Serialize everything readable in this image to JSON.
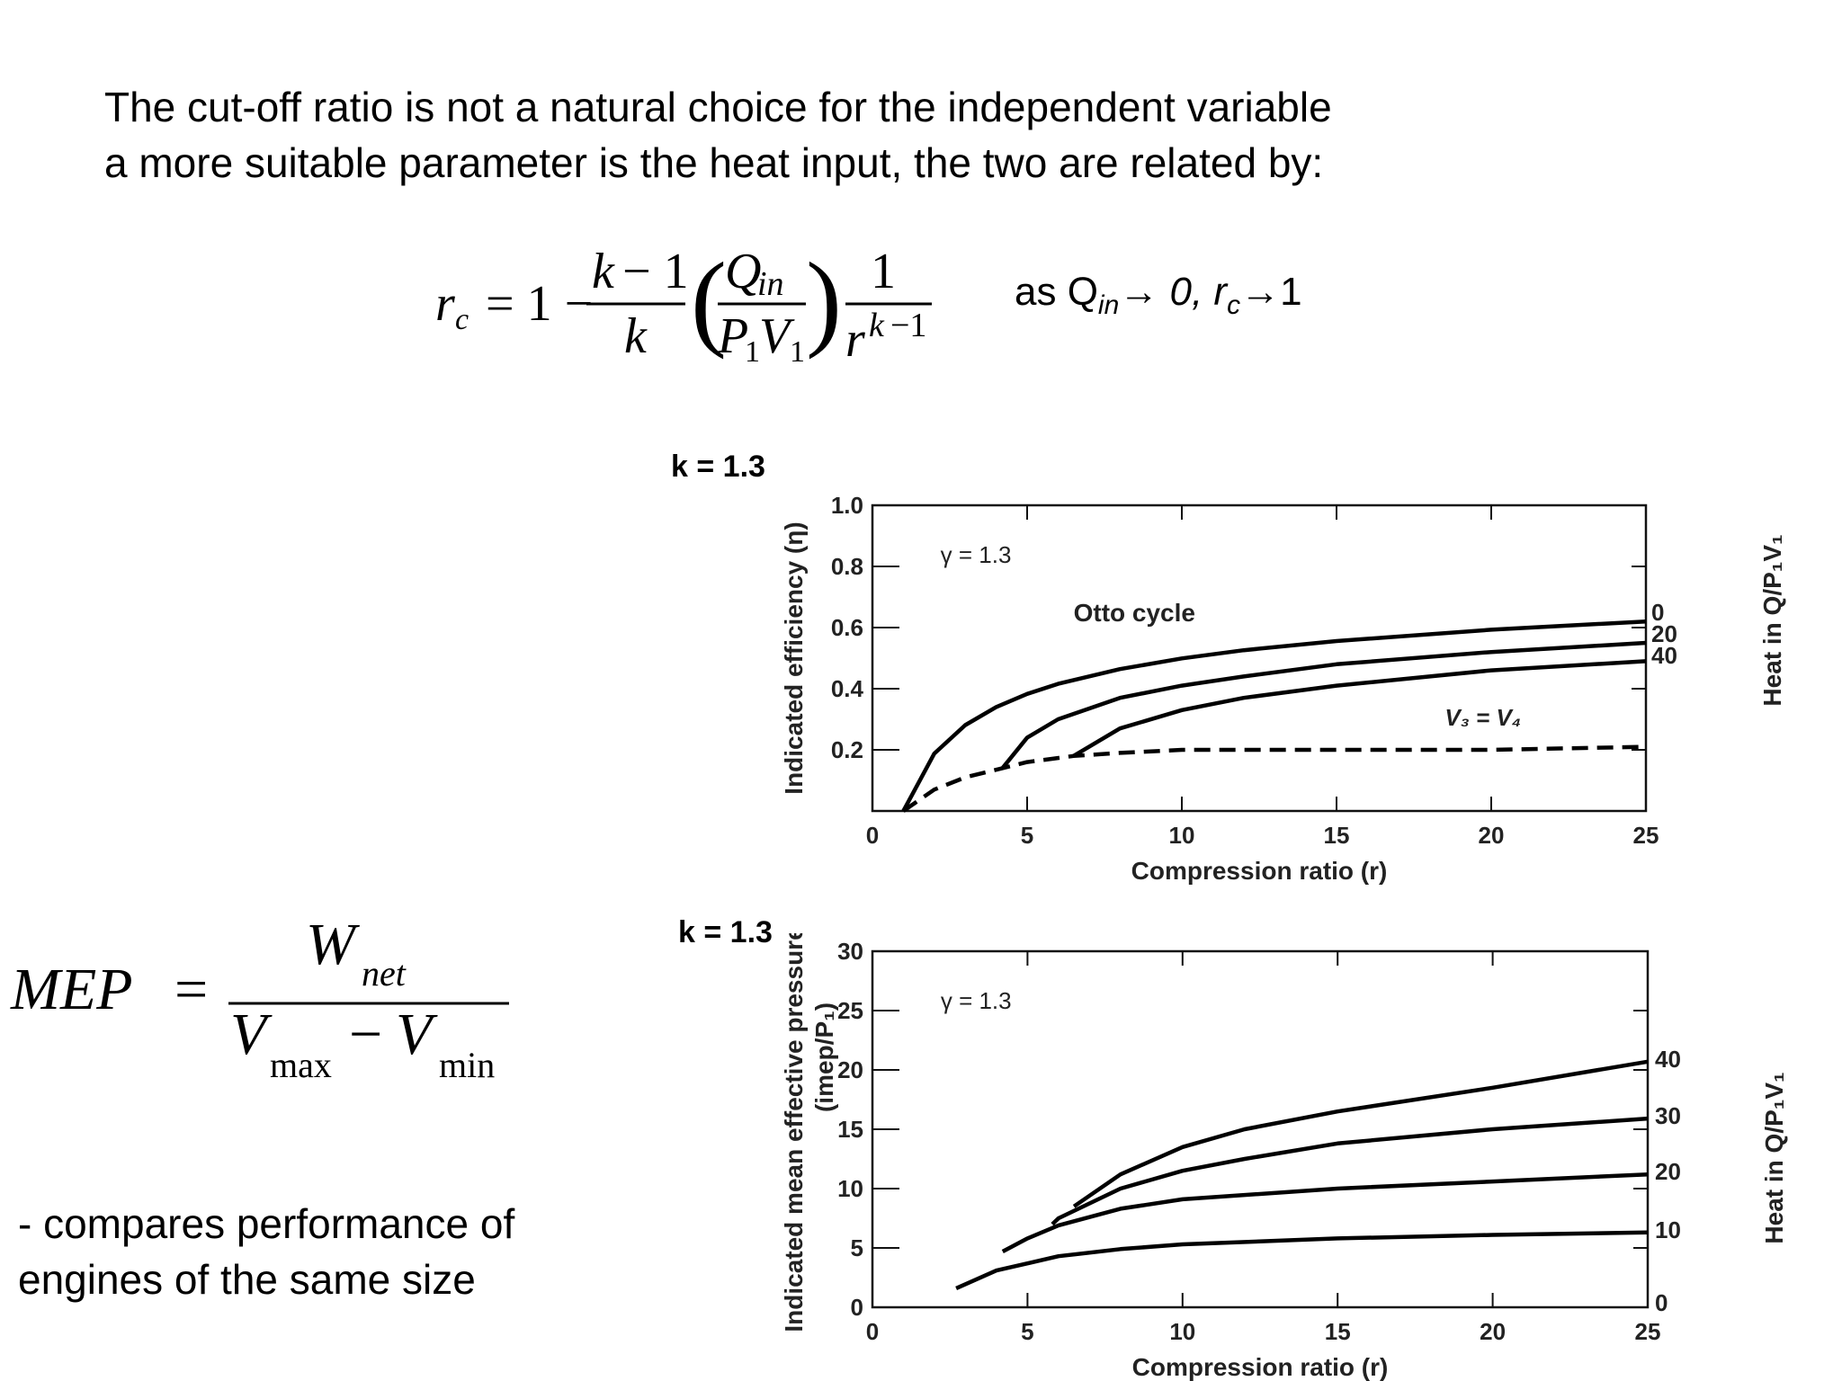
{
  "intro": {
    "line1": "The cut-off ratio is not a natural choice for the independent variable",
    "line2": "a more suitable parameter is the heat input, the two are related by:"
  },
  "formula_note": {
    "prefix": "as Q",
    "sub_in": "in",
    "arrow1": "→ 0, r",
    "sub_c": "c",
    "arrow2": "→1"
  },
  "mep": {
    "lhs": "MEP",
    "numerator": "W",
    "numerator_sub": "net",
    "denominator_a": "V",
    "denominator_a_sub": "max",
    "denominator_b": "V",
    "denominator_b_sub": "min"
  },
  "description": {
    "line1": "- compares performance of",
    "line2": "engines of the same size"
  },
  "chart1_klabel": "k = 1.3",
  "chart2_klabel": "k = 1.3",
  "chart_data": [
    {
      "type": "line",
      "title": "",
      "annotation": "γ = 1.3",
      "xlabel": "Compression ratio (r)",
      "ylabel": "Indicated efficiency (η)",
      "right_label": "Heat in Q/P₁V₁",
      "xlim": [
        0,
        25
      ],
      "ylim": [
        0,
        1.0
      ],
      "x_ticks": [
        "0",
        "5",
        "10",
        "15",
        "20",
        "25"
      ],
      "y_ticks": [
        "0.2",
        "0.4",
        "0.6",
        "0.8",
        "1.0"
      ],
      "text_labels": [
        "Otto cycle",
        "V₃ = V₄"
      ],
      "series": [
        {
          "name": "0",
          "style": "solid",
          "x": [
            1,
            2,
            3,
            4,
            5,
            6,
            8,
            10,
            12,
            15,
            20,
            25
          ],
          "y": [
            0,
            0.188,
            0.281,
            0.34,
            0.383,
            0.416,
            0.464,
            0.499,
            0.526,
            0.556,
            0.593,
            0.62
          ]
        },
        {
          "name": "20",
          "style": "solid",
          "x": [
            4.2,
            5,
            6,
            8,
            10,
            12,
            15,
            20,
            25
          ],
          "y": [
            0.14,
            0.24,
            0.3,
            0.37,
            0.41,
            0.44,
            0.48,
            0.52,
            0.55
          ]
        },
        {
          "name": "40",
          "style": "solid",
          "x": [
            6.5,
            8,
            10,
            12,
            15,
            20,
            25
          ],
          "y": [
            0.18,
            0.27,
            0.33,
            0.37,
            0.41,
            0.46,
            0.49
          ]
        },
        {
          "name": "V₃ = V₄",
          "style": "dashed",
          "x": [
            1,
            2,
            3,
            4.2,
            5,
            6.5,
            8,
            10,
            15,
            20,
            25
          ],
          "y": [
            0,
            0.07,
            0.11,
            0.14,
            0.16,
            0.18,
            0.19,
            0.2,
            0.2,
            0.2,
            0.21
          ]
        }
      ]
    },
    {
      "type": "line",
      "title": "",
      "annotation": "γ = 1.3",
      "xlabel": "Compression ratio (r)",
      "ylabel": "Indicated mean effective pressure",
      "ylabel2": "(imep/P₁)",
      "right_label": "Heat in Q/P₁V₁",
      "xlim": [
        0,
        25
      ],
      "ylim": [
        0,
        30
      ],
      "x_ticks": [
        "0",
        "5",
        "10",
        "15",
        "20",
        "25"
      ],
      "y_ticks": [
        "0",
        "5",
        "10",
        "15",
        "20",
        "25",
        "30"
      ],
      "right_ticks": [
        "0",
        "10",
        "20",
        "30",
        "40"
      ],
      "series": [
        {
          "name": "10",
          "style": "solid",
          "x": [
            2.7,
            4,
            6,
            8,
            10,
            15,
            20,
            25
          ],
          "y": [
            1.6,
            3.1,
            4.3,
            4.9,
            5.3,
            5.8,
            6.1,
            6.3
          ]
        },
        {
          "name": "20",
          "style": "solid",
          "x": [
            4.2,
            5,
            6,
            8,
            10,
            15,
            20,
            25
          ],
          "y": [
            4.7,
            5.8,
            6.9,
            8.3,
            9.1,
            10.0,
            10.6,
            11.2
          ]
        },
        {
          "name": "30",
          "style": "solid",
          "x": [
            5.8,
            6,
            8,
            10,
            12,
            15,
            20,
            25
          ],
          "y": [
            7.0,
            7.5,
            10.0,
            11.5,
            12.5,
            13.8,
            15.0,
            15.9
          ]
        },
        {
          "name": "40",
          "style": "solid",
          "x": [
            6.5,
            8,
            10,
            12,
            15,
            20,
            25
          ],
          "y": [
            8.5,
            11.2,
            13.5,
            15.0,
            16.5,
            18.5,
            20.7
          ]
        }
      ]
    }
  ]
}
